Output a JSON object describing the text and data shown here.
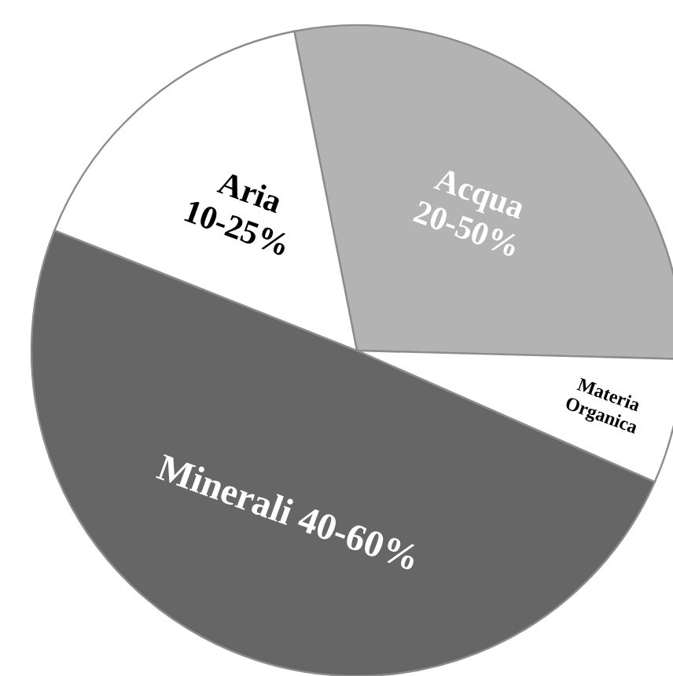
{
  "chart_data": {
    "type": "pie",
    "categories": [
      "Acqua 20-50%",
      "Materia Organica",
      "Minerali 40-60%",
      "Aria 10-25%"
    ],
    "values": [
      28.5,
      6.2,
      49.4,
      15.9
    ],
    "colors": [
      "#b3b3b3",
      "#ffffff",
      "#666666",
      "#ffffff"
    ]
  }
}
